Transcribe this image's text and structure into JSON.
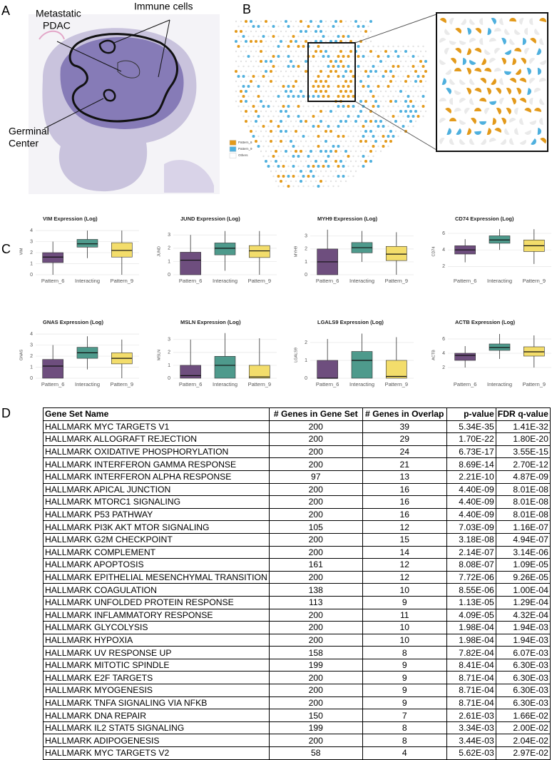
{
  "panels": {
    "a": "A",
    "b": "B",
    "c": "C",
    "d": "D"
  },
  "histology": {
    "metastatic": [
      "Metastatic",
      "PDAC"
    ],
    "immune": "Immune cells",
    "germinal": [
      "Germinal",
      "Center"
    ]
  },
  "spatial_legend": [
    {
      "name": "Pattern_6",
      "color": "#e39a1b"
    },
    {
      "name": "Pattern_9",
      "color": "#4fb0de"
    },
    {
      "name": "Others",
      "color": "#ffffff"
    }
  ],
  "chart_data": [
    {
      "type": "box",
      "title": "VIM Expression (Log)",
      "y_label": "VIM",
      "categories": [
        "Pattern_6",
        "Interacting",
        "Pattern_9"
      ],
      "colors": [
        "#6e4e7e",
        "#4e9a8c",
        "#f3dd6b"
      ],
      "ylim": [
        0,
        4.2
      ],
      "yticks": [
        0,
        1,
        2,
        3,
        4
      ],
      "boxes": [
        {
          "min": 0,
          "q1": 1.1,
          "median": 1.6,
          "q3": 2.0,
          "max": 3.0
        },
        {
          "min": 1.5,
          "q1": 2.5,
          "median": 2.8,
          "q3": 3.2,
          "max": 4.0
        },
        {
          "min": 0,
          "q1": 1.6,
          "median": 2.2,
          "q3": 2.9,
          "max": 4.0
        }
      ]
    },
    {
      "type": "box",
      "title": "JUND Expression (Log)",
      "y_label": "JUND",
      "categories": [
        "Pattern_6",
        "Interacting",
        "Pattern_9"
      ],
      "colors": [
        "#6e4e7e",
        "#4e9a8c",
        "#f3dd6b"
      ],
      "ylim": [
        0,
        3.5
      ],
      "yticks": [
        0,
        1,
        2,
        3
      ],
      "boxes": [
        {
          "min": 0,
          "q1": 0,
          "median": 1.1,
          "q3": 1.7,
          "max": 3.0
        },
        {
          "min": 0.3,
          "q1": 1.5,
          "median": 2.0,
          "q3": 2.4,
          "max": 3.3
        },
        {
          "min": 0,
          "q1": 1.3,
          "median": 1.8,
          "q3": 2.2,
          "max": 3.3
        }
      ]
    },
    {
      "type": "box",
      "title": "MYH9 Expression (Log)",
      "y_label": "MYH9",
      "categories": [
        "Pattern_6",
        "Interacting",
        "Pattern_9"
      ],
      "colors": [
        "#6e4e7e",
        "#4e9a8c",
        "#f3dd6b"
      ],
      "ylim": [
        0,
        3.6
      ],
      "yticks": [
        0,
        1,
        2,
        3
      ],
      "boxes": [
        {
          "min": 0,
          "q1": 0,
          "median": 1.0,
          "q3": 2.0,
          "max": 3.5
        },
        {
          "min": 1.0,
          "q1": 1.7,
          "median": 2.1,
          "q3": 2.5,
          "max": 3.4
        },
        {
          "min": 0,
          "q1": 1.1,
          "median": 1.6,
          "q3": 2.2,
          "max": 3.3
        }
      ]
    },
    {
      "type": "box",
      "title": "CD74 Expression (Log)",
      "y_label": "CD74",
      "categories": [
        "Pattern_6",
        "Interacting",
        "Pattern_9"
      ],
      "colors": [
        "#6e4e7e",
        "#4e9a8c",
        "#f3dd6b"
      ],
      "ylim": [
        1.0,
        6.6
      ],
      "yticks": [
        2,
        4,
        6
      ],
      "boxes": [
        {
          "min": 2.5,
          "q1": 3.5,
          "median": 4.0,
          "q3": 4.5,
          "max": 5.3
        },
        {
          "min": 4.0,
          "q1": 4.8,
          "median": 5.2,
          "q3": 5.7,
          "max": 6.5
        },
        {
          "min": 2.3,
          "q1": 3.8,
          "median": 4.5,
          "q3": 5.2,
          "max": 6.5
        }
      ]
    },
    {
      "type": "box",
      "title": "GNAS Expression (Log)",
      "y_label": "GNAS",
      "categories": [
        "Pattern_6",
        "Interacting",
        "Pattern_9"
      ],
      "colors": [
        "#6e4e7e",
        "#4e9a8c",
        "#f3dd6b"
      ],
      "ylim": [
        0,
        4.2
      ],
      "yticks": [
        0,
        1,
        2,
        3,
        4
      ],
      "boxes": [
        {
          "min": 0,
          "q1": 0,
          "median": 1.1,
          "q3": 1.7,
          "max": 3.0
        },
        {
          "min": 0.8,
          "q1": 1.8,
          "median": 2.3,
          "q3": 2.8,
          "max": 3.8
        },
        {
          "min": 0,
          "q1": 1.3,
          "median": 1.8,
          "q3": 2.3,
          "max": 3.5
        }
      ]
    },
    {
      "type": "box",
      "title": "MSLN Expression (Log)",
      "y_label": "MSLN",
      "categories": [
        "Pattern_6",
        "Interacting",
        "Pattern_9"
      ],
      "colors": [
        "#6e4e7e",
        "#4e9a8c",
        "#f3dd6b"
      ],
      "ylim": [
        0,
        3.6
      ],
      "yticks": [
        0,
        1,
        2,
        3
      ],
      "boxes": [
        {
          "min": 0,
          "q1": 0,
          "median": 0.2,
          "q3": 1.0,
          "max": 3.0
        },
        {
          "min": 0,
          "q1": 0,
          "median": 1.0,
          "q3": 1.7,
          "max": 3.5
        },
        {
          "min": 0,
          "q1": 0,
          "median": 0.1,
          "q3": 1.0,
          "max": 3.1
        }
      ]
    },
    {
      "type": "box",
      "title": "LGALS9 Expression (Log)",
      "y_label": "LGALS9",
      "categories": [
        "Pattern_6",
        "Interacting",
        "Pattern_9"
      ],
      "colors": [
        "#6e4e7e",
        "#4e9a8c",
        "#f3dd6b"
      ],
      "ylim": [
        0,
        2.6
      ],
      "yticks": [
        0,
        1,
        2
      ],
      "boxes": [
        {
          "min": 0,
          "q1": 0,
          "median": 0,
          "q3": 1.0,
          "max": 2.2
        },
        {
          "min": 0,
          "q1": 0,
          "median": 1.0,
          "q3": 1.5,
          "max": 2.5
        },
        {
          "min": 0,
          "q1": 0,
          "median": 0.1,
          "q3": 1.0,
          "max": 2.3
        }
      ]
    },
    {
      "type": "box",
      "title": "ACTB Expression (Log)",
      "y_label": "ACTB",
      "categories": [
        "Pattern_6",
        "Interacting",
        "Pattern_9"
      ],
      "colors": [
        "#6e4e7e",
        "#4e9a8c",
        "#f3dd6b"
      ],
      "ylim": [
        0.5,
        7
      ],
      "yticks": [
        2,
        4,
        6
      ],
      "boxes": [
        {
          "min": 2.0,
          "q1": 3.0,
          "median": 3.7,
          "q3": 4.0,
          "max": 5.0
        },
        {
          "min": 3.2,
          "q1": 4.4,
          "median": 4.8,
          "q3": 5.3,
          "max": 6.7
        },
        {
          "min": 2.0,
          "q1": 3.6,
          "median": 4.2,
          "q3": 4.9,
          "max": 6.5
        }
      ]
    }
  ],
  "table": {
    "header": [
      "Gene Set Name",
      "# Genes in Gene Set",
      "# Genes in Overlap",
      "p-value",
      "FDR q-value"
    ],
    "rows": [
      [
        "HALLMARK MYC TARGETS V1",
        200,
        39,
        "5.34E-35",
        "1.41E-32"
      ],
      [
        "HALLMARK ALLOGRAFT REJECTION",
        200,
        29,
        "1.70E-22",
        "1.80E-20"
      ],
      [
        "HALLMARK OXIDATIVE PHOSPHORYLATION",
        200,
        24,
        "6.73E-17",
        "3.55E-15"
      ],
      [
        "HALLMARK INTERFERON GAMMA RESPONSE",
        200,
        21,
        "8.69E-14",
        "2.70E-12"
      ],
      [
        "HALLMARK INTERFERON ALPHA RESPONSE",
        97,
        13,
        "2.21E-10",
        "4.87E-09"
      ],
      [
        "HALLMARK APICAL JUNCTION",
        200,
        16,
        "4.40E-09",
        "8.01E-08"
      ],
      [
        "HALLMARK MTORC1 SIGNALING",
        200,
        16,
        "4.40E-09",
        "8.01E-08"
      ],
      [
        "HALLMARK P53 PATHWAY",
        200,
        16,
        "4.40E-09",
        "8.01E-08"
      ],
      [
        "HALLMARK PI3K AKT MTOR SIGNALING",
        105,
        12,
        "7.03E-09",
        "1.16E-07"
      ],
      [
        "HALLMARK G2M CHECKPOINT",
        200,
        15,
        "3.18E-08",
        "4.94E-07"
      ],
      [
        "HALLMARK COMPLEMENT",
        200,
        14,
        "2.14E-07",
        "3.14E-06"
      ],
      [
        "HALLMARK APOPTOSIS",
        161,
        12,
        "8.08E-07",
        "1.09E-05"
      ],
      [
        "HALLMARK EPITHELIAL MESENCHYMAL TRANSITION",
        200,
        12,
        "7.72E-06",
        "9.26E-05"
      ],
      [
        "HALLMARK COAGULATION",
        138,
        10,
        "8.55E-06",
        "1.00E-04"
      ],
      [
        "HALLMARK UNFOLDED PROTEIN RESPONSE",
        113,
        9,
        "1.13E-05",
        "1.29E-04"
      ],
      [
        "HALLMARK INFLAMMATORY RESPONSE",
        200,
        11,
        "4.09E-05",
        "4.32E-04"
      ],
      [
        "HALLMARK GLYCOLYSIS",
        200,
        10,
        "1.98E-04",
        "1.94E-03"
      ],
      [
        "HALLMARK HYPOXIA",
        200,
        10,
        "1.98E-04",
        "1.94E-03"
      ],
      [
        "HALLMARK UV RESPONSE UP",
        158,
        8,
        "7.82E-04",
        "6.07E-03"
      ],
      [
        "HALLMARK MITOTIC SPINDLE",
        199,
        9,
        "8.41E-04",
        "6.30E-03"
      ],
      [
        "HALLMARK E2F TARGETS",
        200,
        9,
        "8.71E-04",
        "6.30E-03"
      ],
      [
        "HALLMARK MYOGENESIS",
        200,
        9,
        "8.71E-04",
        "6.30E-03"
      ],
      [
        "HALLMARK TNFA SIGNALING VIA NFKB",
        200,
        9,
        "8.71E-04",
        "6.30E-03"
      ],
      [
        "HALLMARK DNA REPAIR",
        150,
        7,
        "2.61E-03",
        "1.66E-02"
      ],
      [
        "HALLMARK IL2 STAT5 SIGNALING",
        199,
        8,
        "3.34E-03",
        "2.00E-02"
      ],
      [
        "HALLMARK ADIPOGENESIS",
        200,
        8,
        "3.44E-03",
        "2.04E-02"
      ],
      [
        "HALLMARK MYC TARGETS V2",
        58,
        4,
        "5.62E-03",
        "2.97E-02"
      ]
    ]
  }
}
